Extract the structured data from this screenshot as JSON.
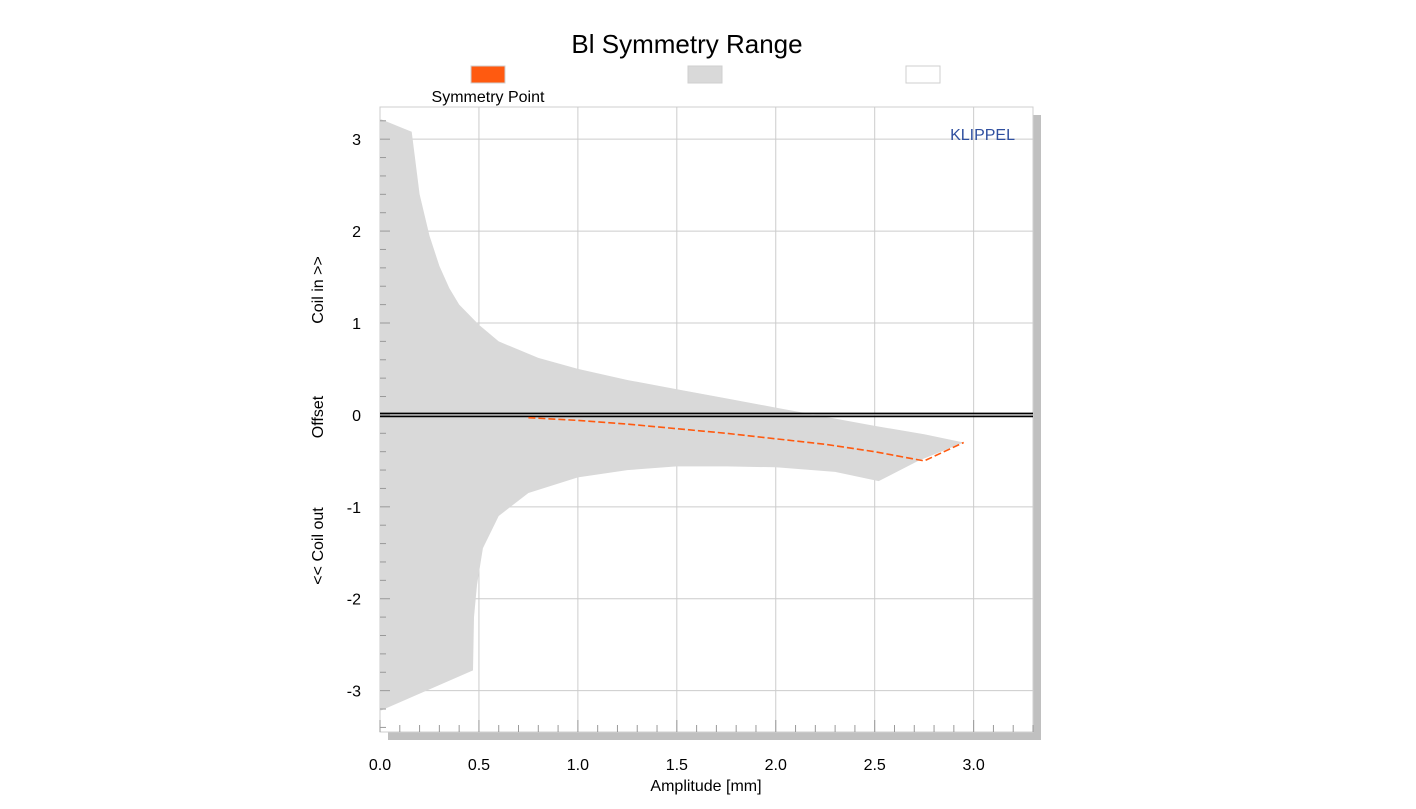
{
  "chart_data": {
    "type": "area",
    "title": "Bl Symmetry Range",
    "xlabel": "Amplitude [mm]",
    "ylabel_parts": [
      "<< Coil out",
      "Offset",
      "Coil in >>"
    ],
    "xlim": [
      0,
      3.3
    ],
    "ylim": [
      -3.45,
      3.35
    ],
    "x_ticks": [
      0.0,
      0.5,
      1.0,
      1.5,
      2.0,
      2.5,
      3.0
    ],
    "x_tick_labels": [
      "0.0",
      "0.5",
      "1.0",
      "1.5",
      "2.0",
      "2.5",
      "3.0"
    ],
    "y_ticks": [
      3,
      2,
      1,
      0,
      -1,
      -2,
      -3
    ],
    "y_tick_labels": [
      "3",
      "2",
      "1",
      "0",
      "-1",
      "-2",
      "-3"
    ],
    "grid": true,
    "legend": [
      {
        "label": "Symmetry Point",
        "color": "#ff5a10"
      },
      {
        "label": "",
        "color": "#d9d9d9"
      },
      {
        "label": "",
        "color": "#ffffff"
      }
    ],
    "watermark": "KLIPPEL",
    "range_upper": [
      [
        0.0,
        3.22
      ],
      [
        0.16,
        3.08
      ],
      [
        0.2,
        2.4
      ],
      [
        0.25,
        1.95
      ],
      [
        0.3,
        1.62
      ],
      [
        0.35,
        1.38
      ],
      [
        0.4,
        1.2
      ],
      [
        0.5,
        0.98
      ],
      [
        0.6,
        0.8
      ],
      [
        0.8,
        0.62
      ],
      [
        1.0,
        0.5
      ],
      [
        1.25,
        0.38
      ],
      [
        1.5,
        0.28
      ],
      [
        1.75,
        0.18
      ],
      [
        2.0,
        0.08
      ],
      [
        2.25,
        -0.02
      ],
      [
        2.5,
        -0.12
      ],
      [
        2.75,
        -0.21
      ],
      [
        2.95,
        -0.3
      ]
    ],
    "range_lower": [
      [
        2.95,
        -0.3
      ],
      [
        2.72,
        -0.5
      ],
      [
        2.52,
        -0.72
      ],
      [
        2.3,
        -0.62
      ],
      [
        2.0,
        -0.57
      ],
      [
        1.75,
        -0.56
      ],
      [
        1.5,
        -0.56
      ],
      [
        1.25,
        -0.6
      ],
      [
        1.0,
        -0.68
      ],
      [
        0.75,
        -0.85
      ],
      [
        0.6,
        -1.1
      ],
      [
        0.52,
        -1.45
      ],
      [
        0.49,
        -1.85
      ],
      [
        0.475,
        -2.2
      ],
      [
        0.47,
        -2.78
      ],
      [
        0.0,
        -3.22
      ]
    ],
    "symmetry_point": [
      [
        0.75,
        -0.03
      ],
      [
        1.0,
        -0.06
      ],
      [
        1.25,
        -0.1
      ],
      [
        1.5,
        -0.15
      ],
      [
        1.75,
        -0.2
      ],
      [
        2.0,
        -0.26
      ],
      [
        2.25,
        -0.32
      ],
      [
        2.5,
        -0.4
      ],
      [
        2.75,
        -0.5
      ],
      [
        2.95,
        -0.3
      ]
    ],
    "zero_line": 0,
    "colors": {
      "range_fill": "#d9d9d9",
      "symmetry_line": "#ff5a10",
      "grid": "#cccccc",
      "plot_shadow": "#c0c0c0"
    }
  }
}
